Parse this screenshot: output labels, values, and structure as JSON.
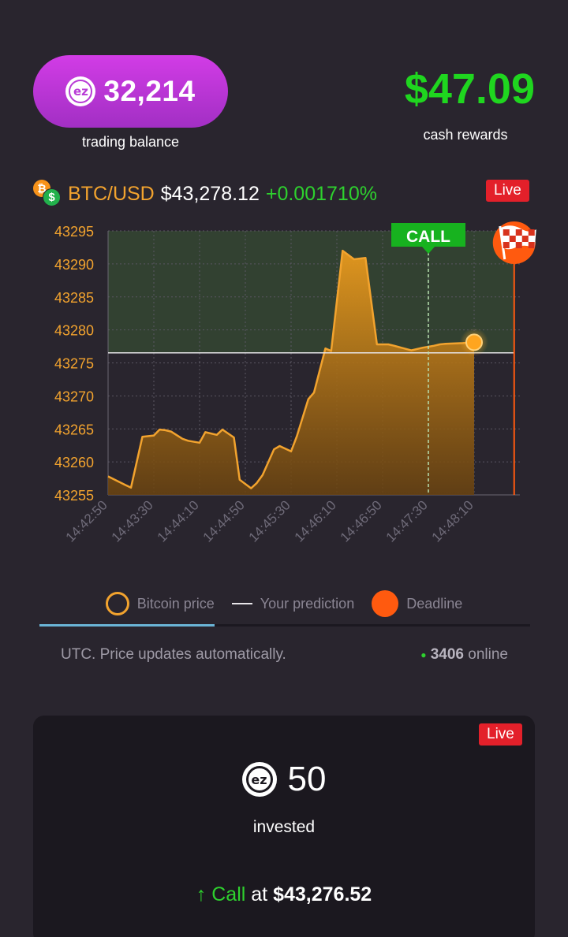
{
  "balance": {
    "icon": "ez-coin-icon",
    "value": "32,214",
    "label": "trading balance"
  },
  "cash": {
    "value": "$47.09",
    "label": "cash rewards"
  },
  "ticker": {
    "icons": [
      "bitcoin-icon",
      "dollar-icon"
    ],
    "pair": "BTC/USD",
    "price": "$43,278.12",
    "change": "+0.001710%",
    "live_label": "Live"
  },
  "colors": {
    "price_line": "#f2a32e",
    "prediction_line": "#e8e6ea",
    "deadline": "#ff5a0f",
    "call_green": "#2ed12e",
    "cash_green": "#1fd61f",
    "live_red": "#e3202a",
    "pill_purple": "#c036dc"
  },
  "chart_data": {
    "type": "area",
    "y_ticks": [
      "43295",
      "43290",
      "43285",
      "43280",
      "43275",
      "43270",
      "43265",
      "43260",
      "43255"
    ],
    "x_ticks": [
      "14:42:50",
      "14:43:30",
      "14:44:10",
      "14:44:50",
      "14:45:30",
      "14:46:10",
      "14:46:50",
      "14:47:30",
      "14:48:10"
    ],
    "ylim": [
      43255,
      43295
    ],
    "xlim": [
      "14:42:50",
      "14:48:50"
    ],
    "grid": true,
    "series": [
      {
        "name": "Bitcoin price",
        "x": [
          "14:42:50",
          "14:43:05",
          "14:43:10",
          "14:43:20",
          "14:43:30",
          "14:43:35",
          "14:43:40",
          "14:43:45",
          "14:43:55",
          "14:44:00",
          "14:44:10",
          "14:44:15",
          "14:44:25",
          "14:44:30",
          "14:44:40",
          "14:44:45",
          "14:44:55",
          "14:45:00",
          "14:45:05",
          "14:45:15",
          "14:45:20",
          "14:45:30",
          "14:45:35",
          "14:45:45",
          "14:45:50",
          "14:46:00",
          "14:46:05",
          "14:46:15",
          "14:46:25",
          "14:46:35",
          "14:46:45",
          "14:46:55",
          "14:47:00",
          "14:47:15",
          "14:47:25",
          "14:47:35",
          "14:47:40",
          "14:47:45",
          "14:48:00",
          "14:48:10"
        ],
        "y": [
          43257.8,
          43256.5,
          43256.1,
          43263.8,
          43264,
          43264.9,
          43264.8,
          43264.6,
          43263.5,
          43263.2,
          43262.9,
          43264.5,
          43264.1,
          43264.9,
          43263.7,
          43257.3,
          43256,
          43256.8,
          43258,
          43261.9,
          43262.4,
          43261.6,
          43263.9,
          43269.5,
          43270.5,
          43277.2,
          43276.8,
          43292,
          43290.7,
          43290.9,
          43277.8,
          43277.8,
          43277.6,
          43276.9,
          43277.3,
          43277.6,
          43277.8,
          43277.9,
          43278,
          43278.12
        ]
      },
      {
        "name": "Your prediction",
        "y": 43276.52
      }
    ],
    "call_marker": {
      "label": "CALL",
      "x": "14:47:30"
    },
    "deadline": {
      "x": "14:48:45",
      "icon": "checkered-flag-icon"
    },
    "legend": [
      "Bitcoin price",
      "Your prediction",
      "Deadline"
    ]
  },
  "footer": {
    "note": "UTC. Price updates automatically.",
    "online_count": "3406",
    "online_label": "online"
  },
  "position": {
    "live_label": "Live",
    "icon": "ez-coin-icon",
    "amount": "50",
    "amount_label": "invested",
    "arrow": "↑",
    "direction": "Call",
    "at": "at",
    "entry_price": "$43,276.52"
  }
}
